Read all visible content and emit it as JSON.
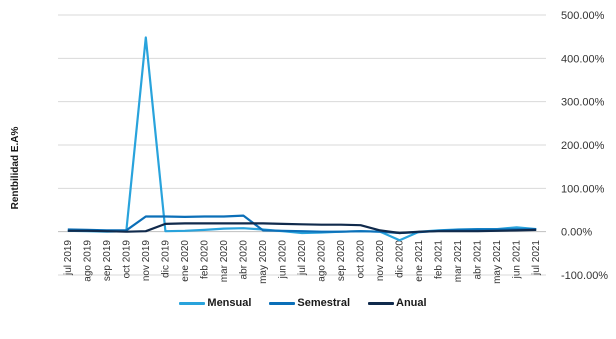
{
  "chart_data": {
    "type": "line",
    "ylabel": "Rentbilidad  E.A%",
    "ylim": [
      -100,
      500
    ],
    "yticks": [
      -100,
      0,
      100,
      200,
      300,
      400,
      500
    ],
    "ytick_labels": [
      "-100.00%",
      "0.00%",
      "100.00%",
      "200.00%",
      "300.00%",
      "400.00%",
      "500.00%"
    ],
    "grid": true,
    "legend_position": "bottom",
    "categories": [
      "jul 2019",
      "ago 2019",
      "sep 2019",
      "oct 2019",
      "nov 2019",
      "dic 2019",
      "ene 2020",
      "feb 2020",
      "mar 2020",
      "abr 2020",
      "may 2020",
      "jun 2020",
      "jul 2020",
      "ago 2020",
      "sep 2020",
      "oct 2020",
      "nov 2020",
      "dic 2020",
      "ene 2021",
      "feb 2021",
      "mar 2021",
      "abr 2021",
      "may 2021",
      "jun 2021",
      "jul 2021"
    ],
    "series": [
      {
        "name": "Mensual",
        "color": "#29a3dc",
        "values": [
          2,
          1,
          0,
          1,
          448,
          1,
          2,
          4,
          7,
          8,
          5,
          1,
          -3,
          -2,
          0,
          1,
          0,
          -20,
          0,
          3,
          5,
          6,
          6,
          10,
          6
        ]
      },
      {
        "name": "Semestral",
        "color": "#0b6fb8",
        "values": [
          5,
          4,
          3,
          3,
          35,
          35,
          34,
          35,
          35,
          37,
          3,
          2,
          1,
          0,
          0,
          1,
          0,
          -3,
          -1,
          2,
          4,
          5,
          5,
          5,
          6
        ]
      },
      {
        "name": "Anual",
        "color": "#102a4c",
        "values": [
          2,
          2,
          1,
          0,
          1,
          18,
          19,
          19,
          19,
          19,
          19,
          18,
          17,
          16,
          16,
          15,
          3,
          -3,
          0,
          1,
          1,
          1,
          2,
          3,
          4
        ]
      }
    ]
  }
}
